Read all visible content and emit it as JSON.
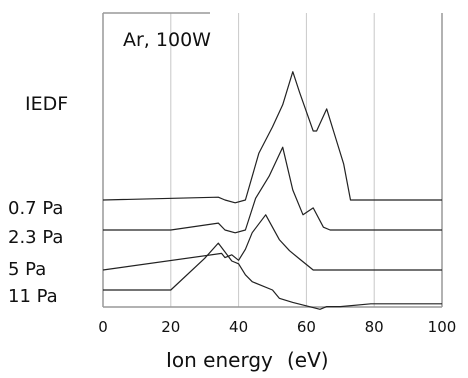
{
  "chart_data": {
    "type": "line",
    "title": "",
    "annotation": "Ar, 100W",
    "xlabel": "Ion energy",
    "xunit": "(eV)",
    "ylabel": "IEDF",
    "xlim": [
      0,
      100
    ],
    "xticks": [
      0,
      20,
      40,
      60,
      80,
      100
    ],
    "grid": "vertical",
    "legend": "none",
    "series": [
      {
        "name": "0.7 Pa",
        "points": [
          [
            0,
            0
          ],
          [
            34,
            0.02
          ],
          [
            36,
            0
          ],
          [
            39,
            -0.02
          ],
          [
            42,
            0
          ],
          [
            46,
            0.34
          ],
          [
            50,
            0.53
          ],
          [
            53,
            0.69
          ],
          [
            56,
            0.93
          ],
          [
            58,
            0.78
          ],
          [
            62,
            0.5
          ],
          [
            63,
            0.5
          ],
          [
            66,
            0.66
          ],
          [
            68,
            0.5
          ],
          [
            71,
            0.26
          ],
          [
            73,
            0
          ],
          [
            100,
            0
          ]
        ]
      },
      {
        "name": "2.3 Pa",
        "points": [
          [
            0,
            0
          ],
          [
            20,
            0
          ],
          [
            34,
            0.05
          ],
          [
            36,
            0
          ],
          [
            39,
            -0.02
          ],
          [
            42,
            0
          ],
          [
            45,
            0.23
          ],
          [
            49,
            0.39
          ],
          [
            53,
            0.6
          ],
          [
            56,
            0.29
          ],
          [
            59,
            0.11
          ],
          [
            62,
            0.16
          ],
          [
            65,
            0.02
          ],
          [
            67,
            0
          ],
          [
            100,
            0
          ]
        ]
      },
      {
        "name": "5 Pa",
        "points": [
          [
            0,
            0
          ],
          [
            35,
            0.12
          ],
          [
            36,
            0.09
          ],
          [
            38,
            0.11
          ],
          [
            40,
            0.07
          ],
          [
            42,
            0.15
          ],
          [
            44,
            0.27
          ],
          [
            48,
            0.4
          ],
          [
            52,
            0.22
          ],
          [
            55,
            0.14
          ],
          [
            58,
            0.08
          ],
          [
            62,
            0
          ],
          [
            100,
            0
          ]
        ]
      },
      {
        "name": "11 Pa",
        "points": [
          [
            0,
            0
          ],
          [
            20,
            0
          ],
          [
            30,
            0.23
          ],
          [
            34,
            0.34
          ],
          [
            38,
            0.21
          ],
          [
            40,
            0.19
          ],
          [
            42,
            0.11
          ],
          [
            44,
            0.06
          ],
          [
            50,
            0
          ],
          [
            52,
            -0.06
          ],
          [
            56,
            -0.09
          ],
          [
            64,
            -0.14
          ],
          [
            66,
            -0.12
          ],
          [
            68,
            -0.12
          ],
          [
            70,
            -0.12
          ],
          [
            79,
            -0.1
          ],
          [
            80,
            -0.1
          ],
          [
            100,
            -0.1
          ]
        ]
      }
    ]
  }
}
